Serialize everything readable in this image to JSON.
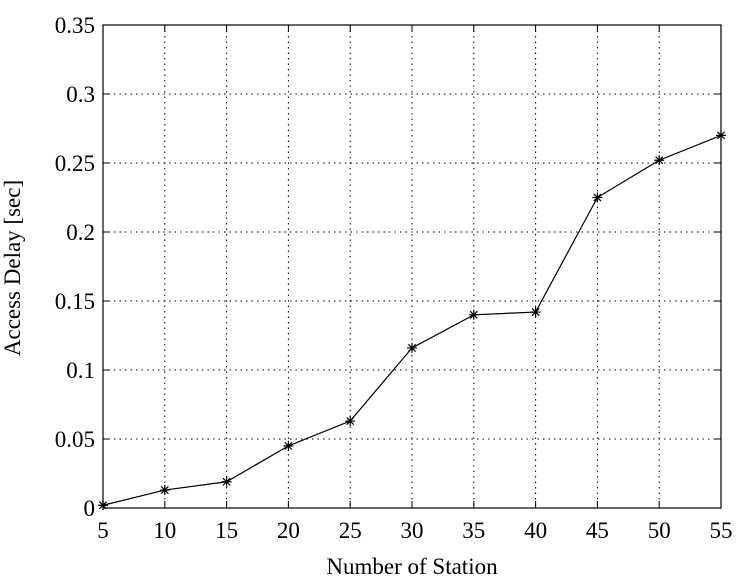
{
  "chart_data": {
    "type": "line",
    "xlabel": "Number of Station",
    "ylabel": "Access Delay [sec]",
    "x": [
      5,
      10,
      15,
      20,
      25,
      30,
      35,
      40,
      45,
      50,
      55
    ],
    "series": [
      {
        "color": "#000000",
        "values": [
          0.002,
          0.013,
          0.019,
          0.045,
          0.063,
          0.116,
          0.14,
          0.142,
          0.225,
          0.252,
          0.27
        ]
      }
    ],
    "xlim": [
      5,
      55
    ],
    "xticks": [
      5,
      10,
      15,
      20,
      25,
      30,
      35,
      40,
      45,
      50,
      55
    ],
    "ylim": [
      0,
      0.35
    ],
    "yticks": [
      0,
      0.05,
      0.1,
      0.15,
      0.2,
      0.25,
      0.3,
      0.35
    ],
    "grid": true,
    "marker": "*"
  }
}
